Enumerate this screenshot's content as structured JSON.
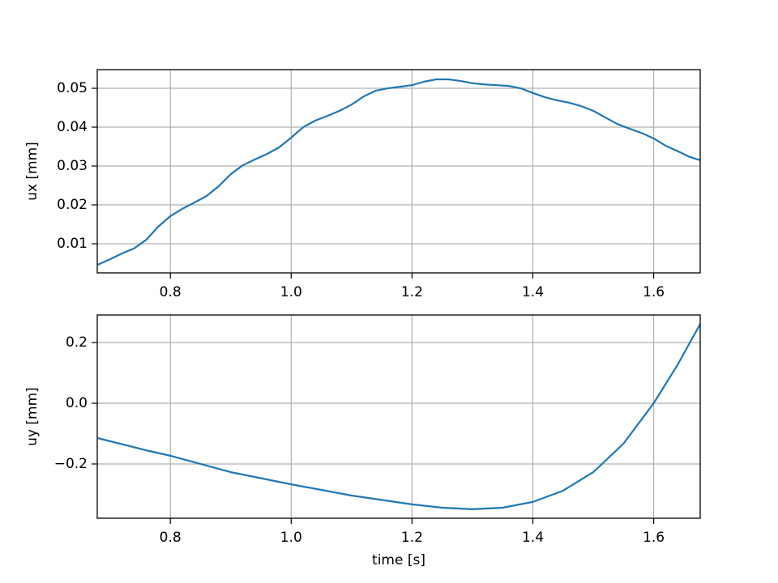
{
  "chart_data": [
    {
      "type": "line",
      "ylabel": "ux [mm]",
      "color": "#1f77b4",
      "grid": true,
      "x": [
        0.68,
        0.7,
        0.72,
        0.74,
        0.76,
        0.78,
        0.8,
        0.82,
        0.84,
        0.86,
        0.88,
        0.9,
        0.92,
        0.94,
        0.96,
        0.98,
        1.0,
        1.02,
        1.04,
        1.06,
        1.08,
        1.1,
        1.12,
        1.14,
        1.16,
        1.18,
        1.2,
        1.22,
        1.24,
        1.26,
        1.28,
        1.3,
        1.32,
        1.34,
        1.36,
        1.38,
        1.4,
        1.42,
        1.44,
        1.46,
        1.48,
        1.5,
        1.52,
        1.54,
        1.56,
        1.58,
        1.6,
        1.62,
        1.64,
        1.66,
        1.677
      ],
      "values": [
        0.0046,
        0.006,
        0.0075,
        0.0088,
        0.011,
        0.0144,
        0.0171,
        0.019,
        0.0206,
        0.0223,
        0.0248,
        0.0279,
        0.0302,
        0.0317,
        0.0331,
        0.0348,
        0.0373,
        0.04,
        0.0417,
        0.0429,
        0.0442,
        0.0458,
        0.0479,
        0.0494,
        0.05,
        0.0504,
        0.0508,
        0.0517,
        0.0523,
        0.0523,
        0.0519,
        0.0513,
        0.051,
        0.0508,
        0.0506,
        0.05,
        0.0488,
        0.0477,
        0.0469,
        0.0463,
        0.0454,
        0.0442,
        0.0425,
        0.0408,
        0.0396,
        0.0385,
        0.0371,
        0.0352,
        0.0338,
        0.0323,
        0.0315
      ],
      "xlim": [
        0.679,
        1.677
      ],
      "xticks": [
        0.8,
        {
          "value": 1.0,
          "label": "1.0"
        },
        1.2,
        1.4,
        1.6
      ],
      "ylim": [
        0.0025,
        0.0548
      ],
      "yticks": [
        0.01,
        0.02,
        0.03,
        0.04,
        0.05
      ]
    },
    {
      "type": "line",
      "xlabel": "time [s]",
      "ylabel": "uy [mm]",
      "color": "#1f77b4",
      "grid": true,
      "x": [
        0.68,
        0.76,
        0.8,
        0.9,
        1.0,
        1.1,
        1.2,
        1.25,
        1.3,
        1.35,
        1.4,
        1.45,
        1.5,
        1.55,
        1.6,
        1.64,
        1.677
      ],
      "values": [
        -0.115,
        -0.155,
        -0.173,
        -0.227,
        -0.267,
        -0.304,
        -0.333,
        -0.344,
        -0.349,
        -0.344,
        -0.325,
        -0.288,
        -0.227,
        -0.133,
        0.0,
        0.128,
        0.261
      ],
      "xlim": [
        0.679,
        1.677
      ],
      "xticks": [
        0.8,
        {
          "value": 1.0,
          "label": "1.0"
        },
        1.2,
        1.4,
        1.6
      ],
      "ylim": [
        -0.3787,
        0.2907
      ],
      "yticks": [
        {
          "value": -0.2,
          "label": "−0.2"
        },
        {
          "value": 0,
          "label": "0.0"
        },
        0.2
      ]
    }
  ]
}
